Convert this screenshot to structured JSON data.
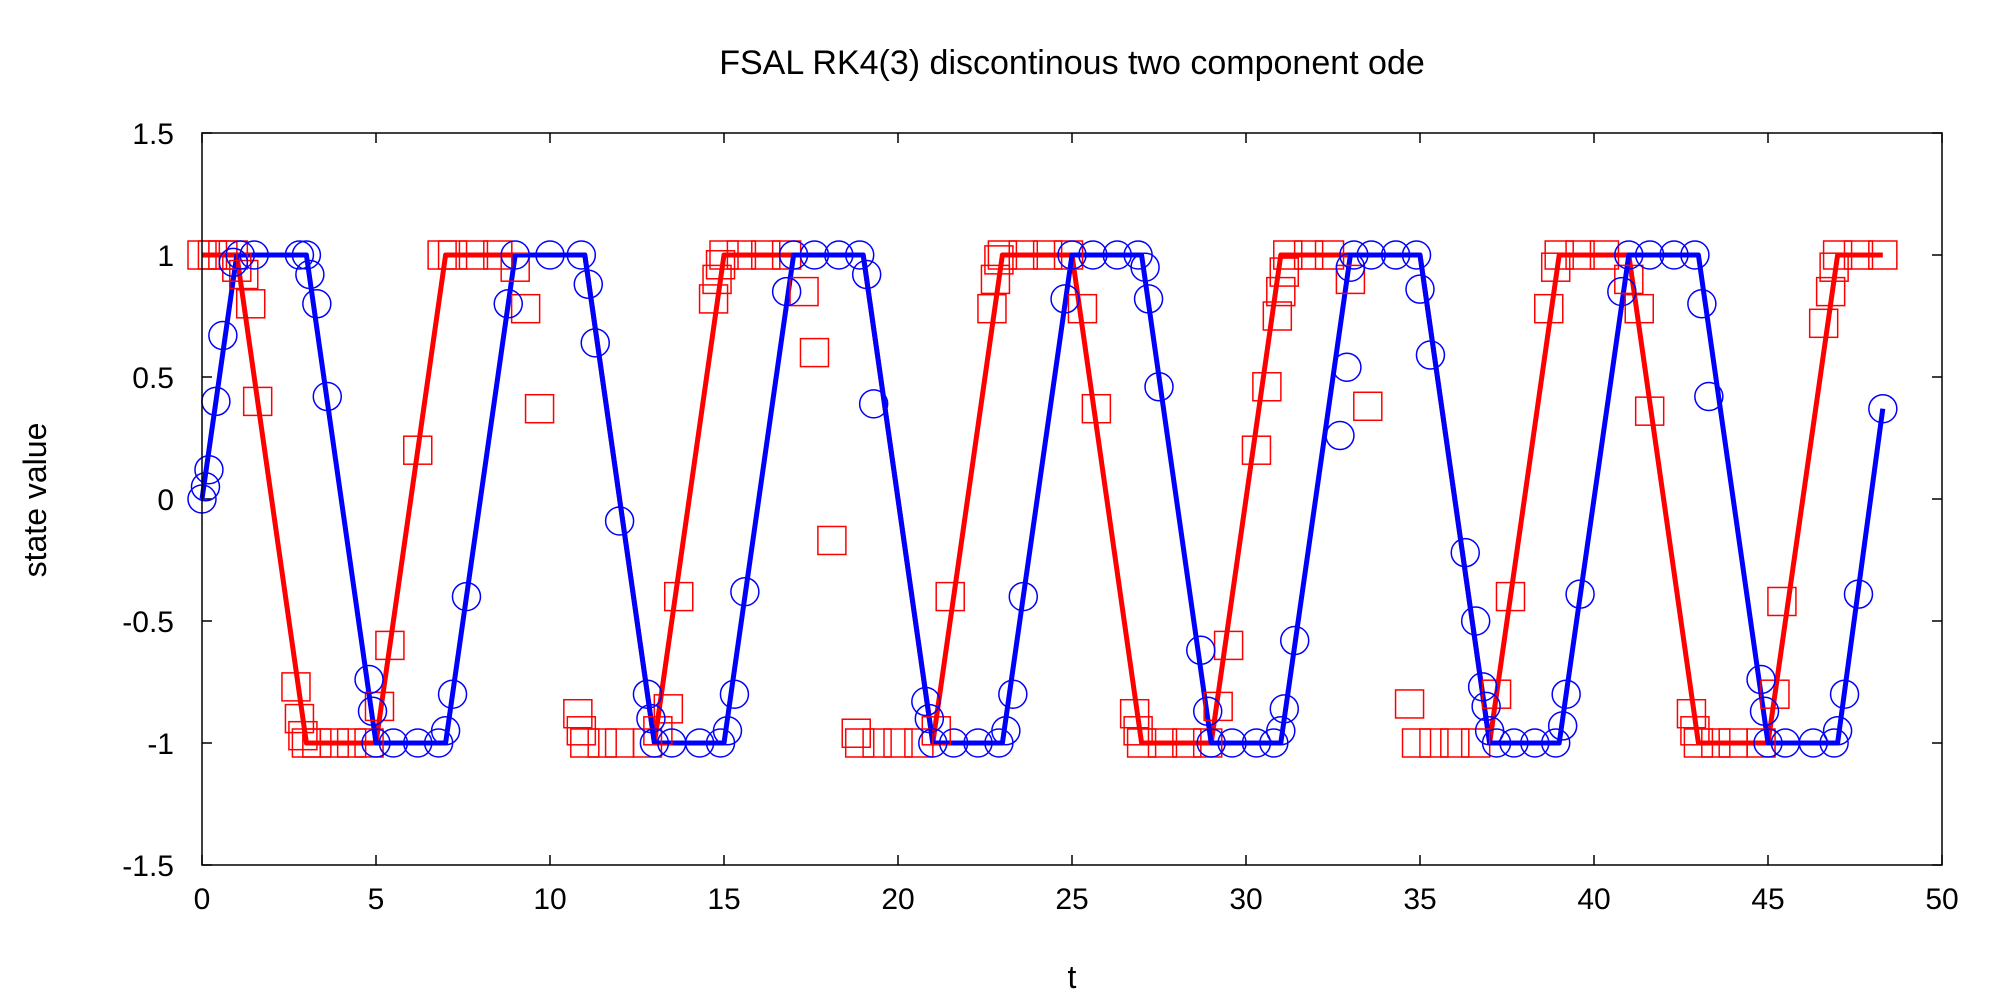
{
  "chart_data": {
    "type": "line",
    "title": "FSAL RK4(3) discontinous two component ode",
    "xlabel": "t",
    "ylabel": "state value",
    "xlim": [
      0,
      50
    ],
    "ylim": [
      -1.5,
      1.5
    ],
    "x_ticks": [
      0,
      5,
      10,
      15,
      20,
      25,
      30,
      35,
      40,
      45,
      50
    ],
    "y_ticks": [
      -1.5,
      -1,
      -0.5,
      0,
      0.5,
      1,
      1.5
    ],
    "x_tick_labels": [
      "0",
      "5",
      "10",
      "15",
      "20",
      "25",
      "30",
      "35",
      "40",
      "45",
      "50"
    ],
    "y_tick_labels": [
      "-1.5",
      "-1",
      "-0.5",
      "0",
      "0.5",
      "1",
      "1.5"
    ],
    "grid": false,
    "series": [
      {
        "color": "#ff0000",
        "marker": "square",
        "line": [
          [
            0,
            1
          ],
          [
            1,
            1
          ],
          [
            3,
            -1
          ],
          [
            5,
            -1
          ],
          [
            7,
            1
          ],
          [
            11,
            1
          ],
          [
            13,
            -1
          ],
          [
            15,
            1
          ],
          [
            19,
            1
          ],
          [
            21,
            -1
          ],
          [
            23,
            1
          ],
          [
            25,
            1
          ],
          [
            27,
            -1
          ],
          [
            29,
            -1
          ],
          [
            31,
            1
          ],
          [
            35,
            1
          ],
          [
            37,
            -1
          ],
          [
            39,
            1
          ],
          [
            41,
            1
          ],
          [
            43,
            -1
          ],
          [
            45,
            -1
          ],
          [
            47,
            1
          ],
          [
            48.3,
            1
          ]
        ],
        "points": [
          [
            0,
            1
          ],
          [
            0.3,
            1
          ],
          [
            0.6,
            1
          ],
          [
            0.9,
            1
          ],
          [
            1.0,
            0.95
          ],
          [
            1.2,
            0.92
          ],
          [
            1.4,
            0.8
          ],
          [
            1.6,
            0.4
          ],
          [
            2.7,
            -0.77
          ],
          [
            2.8,
            -0.9
          ],
          [
            2.9,
            -0.97
          ],
          [
            3,
            -1
          ],
          [
            3.3,
            -1
          ],
          [
            3.8,
            -1
          ],
          [
            4.3,
            -1
          ],
          [
            4.8,
            -1
          ],
          [
            5.1,
            -0.85
          ],
          [
            5.4,
            -0.6
          ],
          [
            6.2,
            0.2
          ],
          [
            6.9,
            1
          ],
          [
            7.2,
            1
          ],
          [
            7.8,
            1
          ],
          [
            8.5,
            1
          ],
          [
            9,
            0.95
          ],
          [
            9.3,
            0.78
          ],
          [
            9.7,
            0.37
          ],
          [
            10.8,
            -0.88
          ],
          [
            10.9,
            -0.95
          ],
          [
            11,
            -1
          ],
          [
            11.5,
            -1
          ],
          [
            12,
            -1
          ],
          [
            12.8,
            -1
          ],
          [
            13.1,
            -0.95
          ],
          [
            13.4,
            -0.86
          ],
          [
            13.7,
            -0.4
          ],
          [
            14.7,
            0.82
          ],
          [
            14.8,
            0.9
          ],
          [
            14.9,
            0.96
          ],
          [
            15,
            1
          ],
          [
            15.5,
            1
          ],
          [
            16.2,
            1
          ],
          [
            16.8,
            1
          ],
          [
            17.3,
            0.85
          ],
          [
            17.6,
            0.6
          ],
          [
            18.1,
            -0.17
          ],
          [
            18.8,
            -0.96
          ],
          [
            18.9,
            -1
          ],
          [
            19.4,
            -1
          ],
          [
            20,
            -1
          ],
          [
            20.6,
            -1
          ],
          [
            21.1,
            -0.95
          ],
          [
            21.5,
            -0.4
          ],
          [
            22.7,
            0.78
          ],
          [
            22.8,
            0.9
          ],
          [
            22.9,
            0.98
          ],
          [
            23,
            1
          ],
          [
            23.6,
            1
          ],
          [
            24.3,
            1
          ],
          [
            24.9,
            1
          ],
          [
            25.3,
            0.78
          ],
          [
            25.7,
            0.37
          ],
          [
            26.8,
            -0.88
          ],
          [
            26.9,
            -0.95
          ],
          [
            27,
            -1
          ],
          [
            27.6,
            -1
          ],
          [
            28.3,
            -1
          ],
          [
            28.9,
            -1
          ],
          [
            29.2,
            -0.85
          ],
          [
            29.5,
            -0.6
          ],
          [
            30.3,
            0.2
          ],
          [
            30.6,
            0.46
          ],
          [
            30.9,
            0.75
          ],
          [
            31,
            0.85
          ],
          [
            31.1,
            0.93
          ],
          [
            31.2,
            1
          ],
          [
            31.8,
            1
          ],
          [
            32.4,
            1
          ],
          [
            33,
            0.9
          ],
          [
            33.5,
            0.38
          ],
          [
            34.7,
            -0.84
          ],
          [
            34.9,
            -1
          ],
          [
            35.4,
            -1
          ],
          [
            36,
            -1
          ],
          [
            36.6,
            -1
          ],
          [
            37.2,
            -0.8
          ],
          [
            37.6,
            -0.4
          ],
          [
            38.7,
            0.78
          ],
          [
            38.9,
            0.95
          ],
          [
            39,
            1
          ],
          [
            39.6,
            1
          ],
          [
            40.3,
            1
          ],
          [
            41,
            0.9
          ],
          [
            41.3,
            0.78
          ],
          [
            41.6,
            0.36
          ],
          [
            42.8,
            -0.88
          ],
          [
            42.9,
            -0.95
          ],
          [
            43,
            -1
          ],
          [
            43.5,
            -1
          ],
          [
            44,
            -1
          ],
          [
            44.8,
            -1
          ],
          [
            45.2,
            -0.8
          ],
          [
            45.4,
            -0.42
          ],
          [
            46.6,
            0.72
          ],
          [
            46.8,
            0.85
          ],
          [
            46.9,
            0.95
          ],
          [
            47,
            1
          ],
          [
            47.6,
            1
          ],
          [
            48.3,
            1
          ]
        ]
      },
      {
        "color": "#0000ff",
        "marker": "circle",
        "line": [
          [
            0,
            0
          ],
          [
            1,
            1
          ],
          [
            3,
            1
          ],
          [
            5,
            -1
          ],
          [
            7,
            -1
          ],
          [
            9,
            1
          ],
          [
            11,
            1
          ],
          [
            13,
            -1
          ],
          [
            15,
            -1
          ],
          [
            17,
            1
          ],
          [
            19,
            1
          ],
          [
            21,
            -1
          ],
          [
            23,
            -1
          ],
          [
            25,
            1
          ],
          [
            27,
            1
          ],
          [
            29,
            -1
          ],
          [
            31,
            -1
          ],
          [
            33,
            1
          ],
          [
            35,
            1
          ],
          [
            37,
            -1
          ],
          [
            39,
            -1
          ],
          [
            41,
            1
          ],
          [
            43,
            1
          ],
          [
            45,
            -1
          ],
          [
            47,
            -1
          ],
          [
            48.3,
            0.37
          ]
        ],
        "points": [
          [
            0,
            0
          ],
          [
            0.1,
            0.05
          ],
          [
            0.2,
            0.12
          ],
          [
            0.4,
            0.4
          ],
          [
            0.6,
            0.67
          ],
          [
            0.9,
            0.97
          ],
          [
            1.1,
            1
          ],
          [
            1.5,
            1
          ],
          [
            2.8,
            1
          ],
          [
            3,
            1
          ],
          [
            3.1,
            0.92
          ],
          [
            3.3,
            0.8
          ],
          [
            3.6,
            0.42
          ],
          [
            4.8,
            -0.74
          ],
          [
            4.9,
            -0.87
          ],
          [
            5,
            -1
          ],
          [
            5.5,
            -1
          ],
          [
            6.2,
            -1
          ],
          [
            6.8,
            -1
          ],
          [
            7,
            -0.95
          ],
          [
            7.2,
            -0.8
          ],
          [
            7.6,
            -0.4
          ],
          [
            8.8,
            0.8
          ],
          [
            9,
            1
          ],
          [
            10,
            1
          ],
          [
            10.9,
            1
          ],
          [
            11.1,
            0.88
          ],
          [
            11.3,
            0.64
          ],
          [
            12,
            -0.09
          ],
          [
            12.8,
            -0.8
          ],
          [
            12.9,
            -0.9
          ],
          [
            13,
            -1
          ],
          [
            13.5,
            -1
          ],
          [
            14.3,
            -1
          ],
          [
            14.9,
            -1
          ],
          [
            15.1,
            -0.95
          ],
          [
            15.3,
            -0.8
          ],
          [
            15.6,
            -0.38
          ],
          [
            16.8,
            0.85
          ],
          [
            17,
            1
          ],
          [
            17.6,
            1
          ],
          [
            18.3,
            1
          ],
          [
            18.9,
            1
          ],
          [
            19.1,
            0.92
          ],
          [
            19.3,
            0.39
          ],
          [
            20.8,
            -0.83
          ],
          [
            20.9,
            -0.9
          ],
          [
            21,
            -1
          ],
          [
            21.6,
            -1
          ],
          [
            22.3,
            -1
          ],
          [
            22.9,
            -1
          ],
          [
            23.1,
            -0.95
          ],
          [
            23.3,
            -0.8
          ],
          [
            23.6,
            -0.4
          ],
          [
            24.8,
            0.82
          ],
          [
            25,
            1
          ],
          [
            25.6,
            1
          ],
          [
            26.3,
            1
          ],
          [
            26.9,
            1
          ],
          [
            27.1,
            0.95
          ],
          [
            27.2,
            0.82
          ],
          [
            27.5,
            0.46
          ],
          [
            28.7,
            -0.62
          ],
          [
            28.9,
            -0.87
          ],
          [
            29,
            -1
          ],
          [
            29.6,
            -1
          ],
          [
            30.3,
            -1
          ],
          [
            30.8,
            -1
          ],
          [
            31,
            -0.95
          ],
          [
            31.1,
            -0.86
          ],
          [
            31.4,
            -0.58
          ],
          [
            32.7,
            0.26
          ],
          [
            32.9,
            0.54
          ],
          [
            33,
            0.95
          ],
          [
            33.1,
            1
          ],
          [
            33.6,
            1
          ],
          [
            34.3,
            1
          ],
          [
            34.9,
            1
          ],
          [
            35,
            0.86
          ],
          [
            35.3,
            0.59
          ],
          [
            36.3,
            -0.22
          ],
          [
            36.6,
            -0.5
          ],
          [
            36.8,
            -0.77
          ],
          [
            36.9,
            -0.85
          ],
          [
            37,
            -0.95
          ],
          [
            37.2,
            -1
          ],
          [
            37.7,
            -1
          ],
          [
            38.3,
            -1
          ],
          [
            38.9,
            -1
          ],
          [
            39.1,
            -0.93
          ],
          [
            39.2,
            -0.8
          ],
          [
            39.6,
            -0.39
          ],
          [
            40.8,
            0.85
          ],
          [
            41,
            1
          ],
          [
            41.6,
            1
          ],
          [
            42.3,
            1
          ],
          [
            42.9,
            1
          ],
          [
            43.1,
            0.8
          ],
          [
            43.3,
            0.42
          ],
          [
            44.8,
            -0.74
          ],
          [
            44.9,
            -0.87
          ],
          [
            45,
            -1
          ],
          [
            45.5,
            -1
          ],
          [
            46.3,
            -1
          ],
          [
            46.9,
            -1
          ],
          [
            47,
            -0.95
          ],
          [
            47.2,
            -0.8
          ],
          [
            47.6,
            -0.39
          ],
          [
            48.3,
            0.37
          ]
        ]
      }
    ]
  }
}
